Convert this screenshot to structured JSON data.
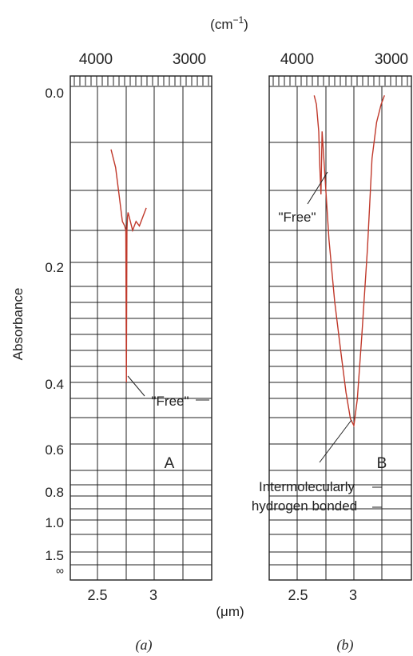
{
  "figure": {
    "top_unit": "(cm",
    "top_unit_exp": "−1",
    "top_unit_close": ")",
    "bottom_unit": "(μm)",
    "ylabel": "Absorbance",
    "line_color": "#c0392b",
    "grid_color": "#222222"
  },
  "chart_data": [
    {
      "type": "line",
      "panel_caption": "(a)",
      "panel_label": "A",
      "x_top_ticks": [
        "4000",
        "3000"
      ],
      "x_bottom_ticks": [
        "2.5",
        "3"
      ],
      "y_ticks": [
        "0.0",
        "0.2",
        "0.4",
        "0.6",
        "0.8",
        "1.0",
        "1.5",
        "∞"
      ],
      "y_scale": "log-transmittance (absorbance)",
      "x_unit": "μm",
      "series": [
        {
          "x": [
            2.62,
            2.66,
            2.69,
            2.71,
            2.72,
            2.74,
            2.75,
            2.755,
            2.76,
            2.765,
            2.77,
            2.79,
            2.81,
            2.84,
            2.87,
            2.9,
            2.93
          ],
          "y": [
            0.07,
            0.09,
            0.12,
            0.14,
            0.15,
            0.155,
            0.16,
            0.4,
            0.16,
            0.145,
            0.14,
            0.15,
            0.16,
            0.15,
            0.155,
            0.145,
            0.135
          ]
        }
      ],
      "annotations": [
        {
          "text": "\"Free\"",
          "x": 2.75,
          "y": 0.4
        }
      ]
    },
    {
      "type": "line",
      "panel_caption": "(b)",
      "panel_label": "B",
      "x_top_ticks": [
        "4000",
        "3000"
      ],
      "x_bottom_ticks": [
        "2.5",
        "3"
      ],
      "y_ticks": [
        "0.0",
        "0.2",
        "0.4",
        "0.6",
        "0.8",
        "1.0",
        "1.5",
        "∞"
      ],
      "y_scale": "log-transmittance (absorbance)",
      "x_unit": "μm",
      "series": [
        {
          "x": [
            2.65,
            2.67,
            2.69,
            2.7,
            2.71,
            2.72,
            2.74,
            2.78,
            2.83,
            2.88,
            2.93,
            2.97,
            3.0,
            3.03,
            3.07,
            3.12,
            3.16,
            3.2,
            3.24,
            3.27
          ],
          "y": [
            0.01,
            0.02,
            0.05,
            0.09,
            0.12,
            0.05,
            0.09,
            0.17,
            0.26,
            0.34,
            0.43,
            0.51,
            0.53,
            0.45,
            0.32,
            0.18,
            0.08,
            0.04,
            0.02,
            0.01
          ]
        }
      ],
      "annotations": [
        {
          "text": "\"Free\"",
          "x": 2.7,
          "y": 0.12
        },
        {
          "text": "Intermolecularly",
          "x": 3.0,
          "y": 0.53
        },
        {
          "text": "hydrogen bonded",
          "x": 3.0,
          "y": 0.53
        }
      ]
    }
  ]
}
